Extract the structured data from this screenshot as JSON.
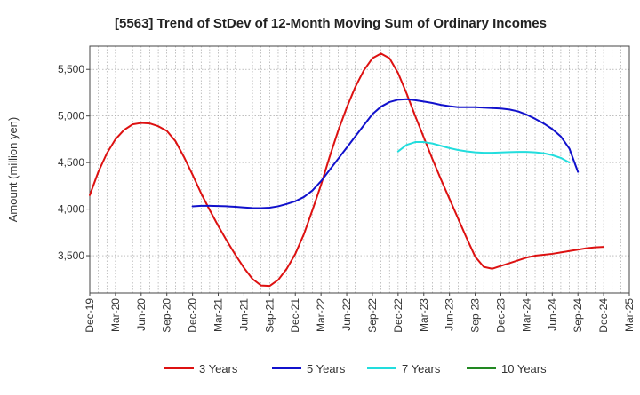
{
  "chart_data": {
    "type": "line",
    "title": "[5563]  Trend of StDev of 12-Month Moving Sum of Ordinary Incomes",
    "xlabel": "",
    "ylabel": "Amount (million yen)",
    "ylim": [
      3100,
      5750
    ],
    "yticks": [
      3500,
      4000,
      4500,
      5000,
      5500
    ],
    "ytick_labels": [
      "3,500",
      "4,000",
      "4,500",
      "5,000",
      "5,500"
    ],
    "x_start": "Dec-19",
    "x_tick_labels": [
      "Dec-19",
      "Mar-20",
      "Jun-20",
      "Sep-20",
      "Dec-20",
      "Mar-21",
      "Jun-21",
      "Sep-21",
      "Dec-21",
      "Mar-22",
      "Jun-22",
      "Sep-22",
      "Dec-22",
      "Mar-23",
      "Jun-23",
      "Sep-23",
      "Dec-23",
      "Mar-24",
      "Jun-24",
      "Sep-24",
      "Dec-24",
      "Mar-25"
    ],
    "grid": true,
    "legend_position": "bottom",
    "series": [
      {
        "name": "3 Years",
        "color": "#dd1111",
        "start_index": 0,
        "values": [
          4150,
          4400,
          4600,
          4750,
          4850,
          4910,
          4925,
          4920,
          4890,
          4840,
          4730,
          4560,
          4370,
          4170,
          3990,
          3820,
          3660,
          3510,
          3370,
          3250,
          3180,
          3175,
          3240,
          3360,
          3520,
          3730,
          3990,
          4260,
          4560,
          4840,
          5090,
          5310,
          5490,
          5620,
          5670,
          5620,
          5460,
          5240,
          5000,
          4770,
          4540,
          4320,
          4110,
          3900,
          3690,
          3490,
          3380,
          3360,
          3390,
          3420,
          3450,
          3480,
          3500,
          3510,
          3520,
          3535,
          3550,
          3565,
          3580,
          3590,
          3595
        ]
      },
      {
        "name": "5 Years",
        "color": "#1111cc",
        "start_index": 12,
        "values": [
          4030,
          4035,
          4035,
          4033,
          4030,
          4025,
          4018,
          4012,
          4010,
          4015,
          4030,
          4055,
          4085,
          4130,
          4200,
          4300,
          4420,
          4540,
          4660,
          4780,
          4900,
          5020,
          5100,
          5150,
          5175,
          5180,
          5170,
          5155,
          5140,
          5120,
          5105,
          5095,
          5095,
          5095,
          5090,
          5085,
          5080,
          5070,
          5050,
          5015,
          4970,
          4920,
          4860,
          4780,
          4650,
          4400
        ]
      },
      {
        "name": "7 Years",
        "color": "#22dddd",
        "start_index": 36,
        "values": [
          4620,
          4690,
          4720,
          4720,
          4705,
          4680,
          4655,
          4635,
          4620,
          4610,
          4605,
          4605,
          4608,
          4612,
          4615,
          4615,
          4610,
          4600,
          4580,
          4550,
          4500
        ]
      },
      {
        "name": "10 Years",
        "color": "#228822",
        "start_index": 0,
        "values": []
      }
    ]
  }
}
